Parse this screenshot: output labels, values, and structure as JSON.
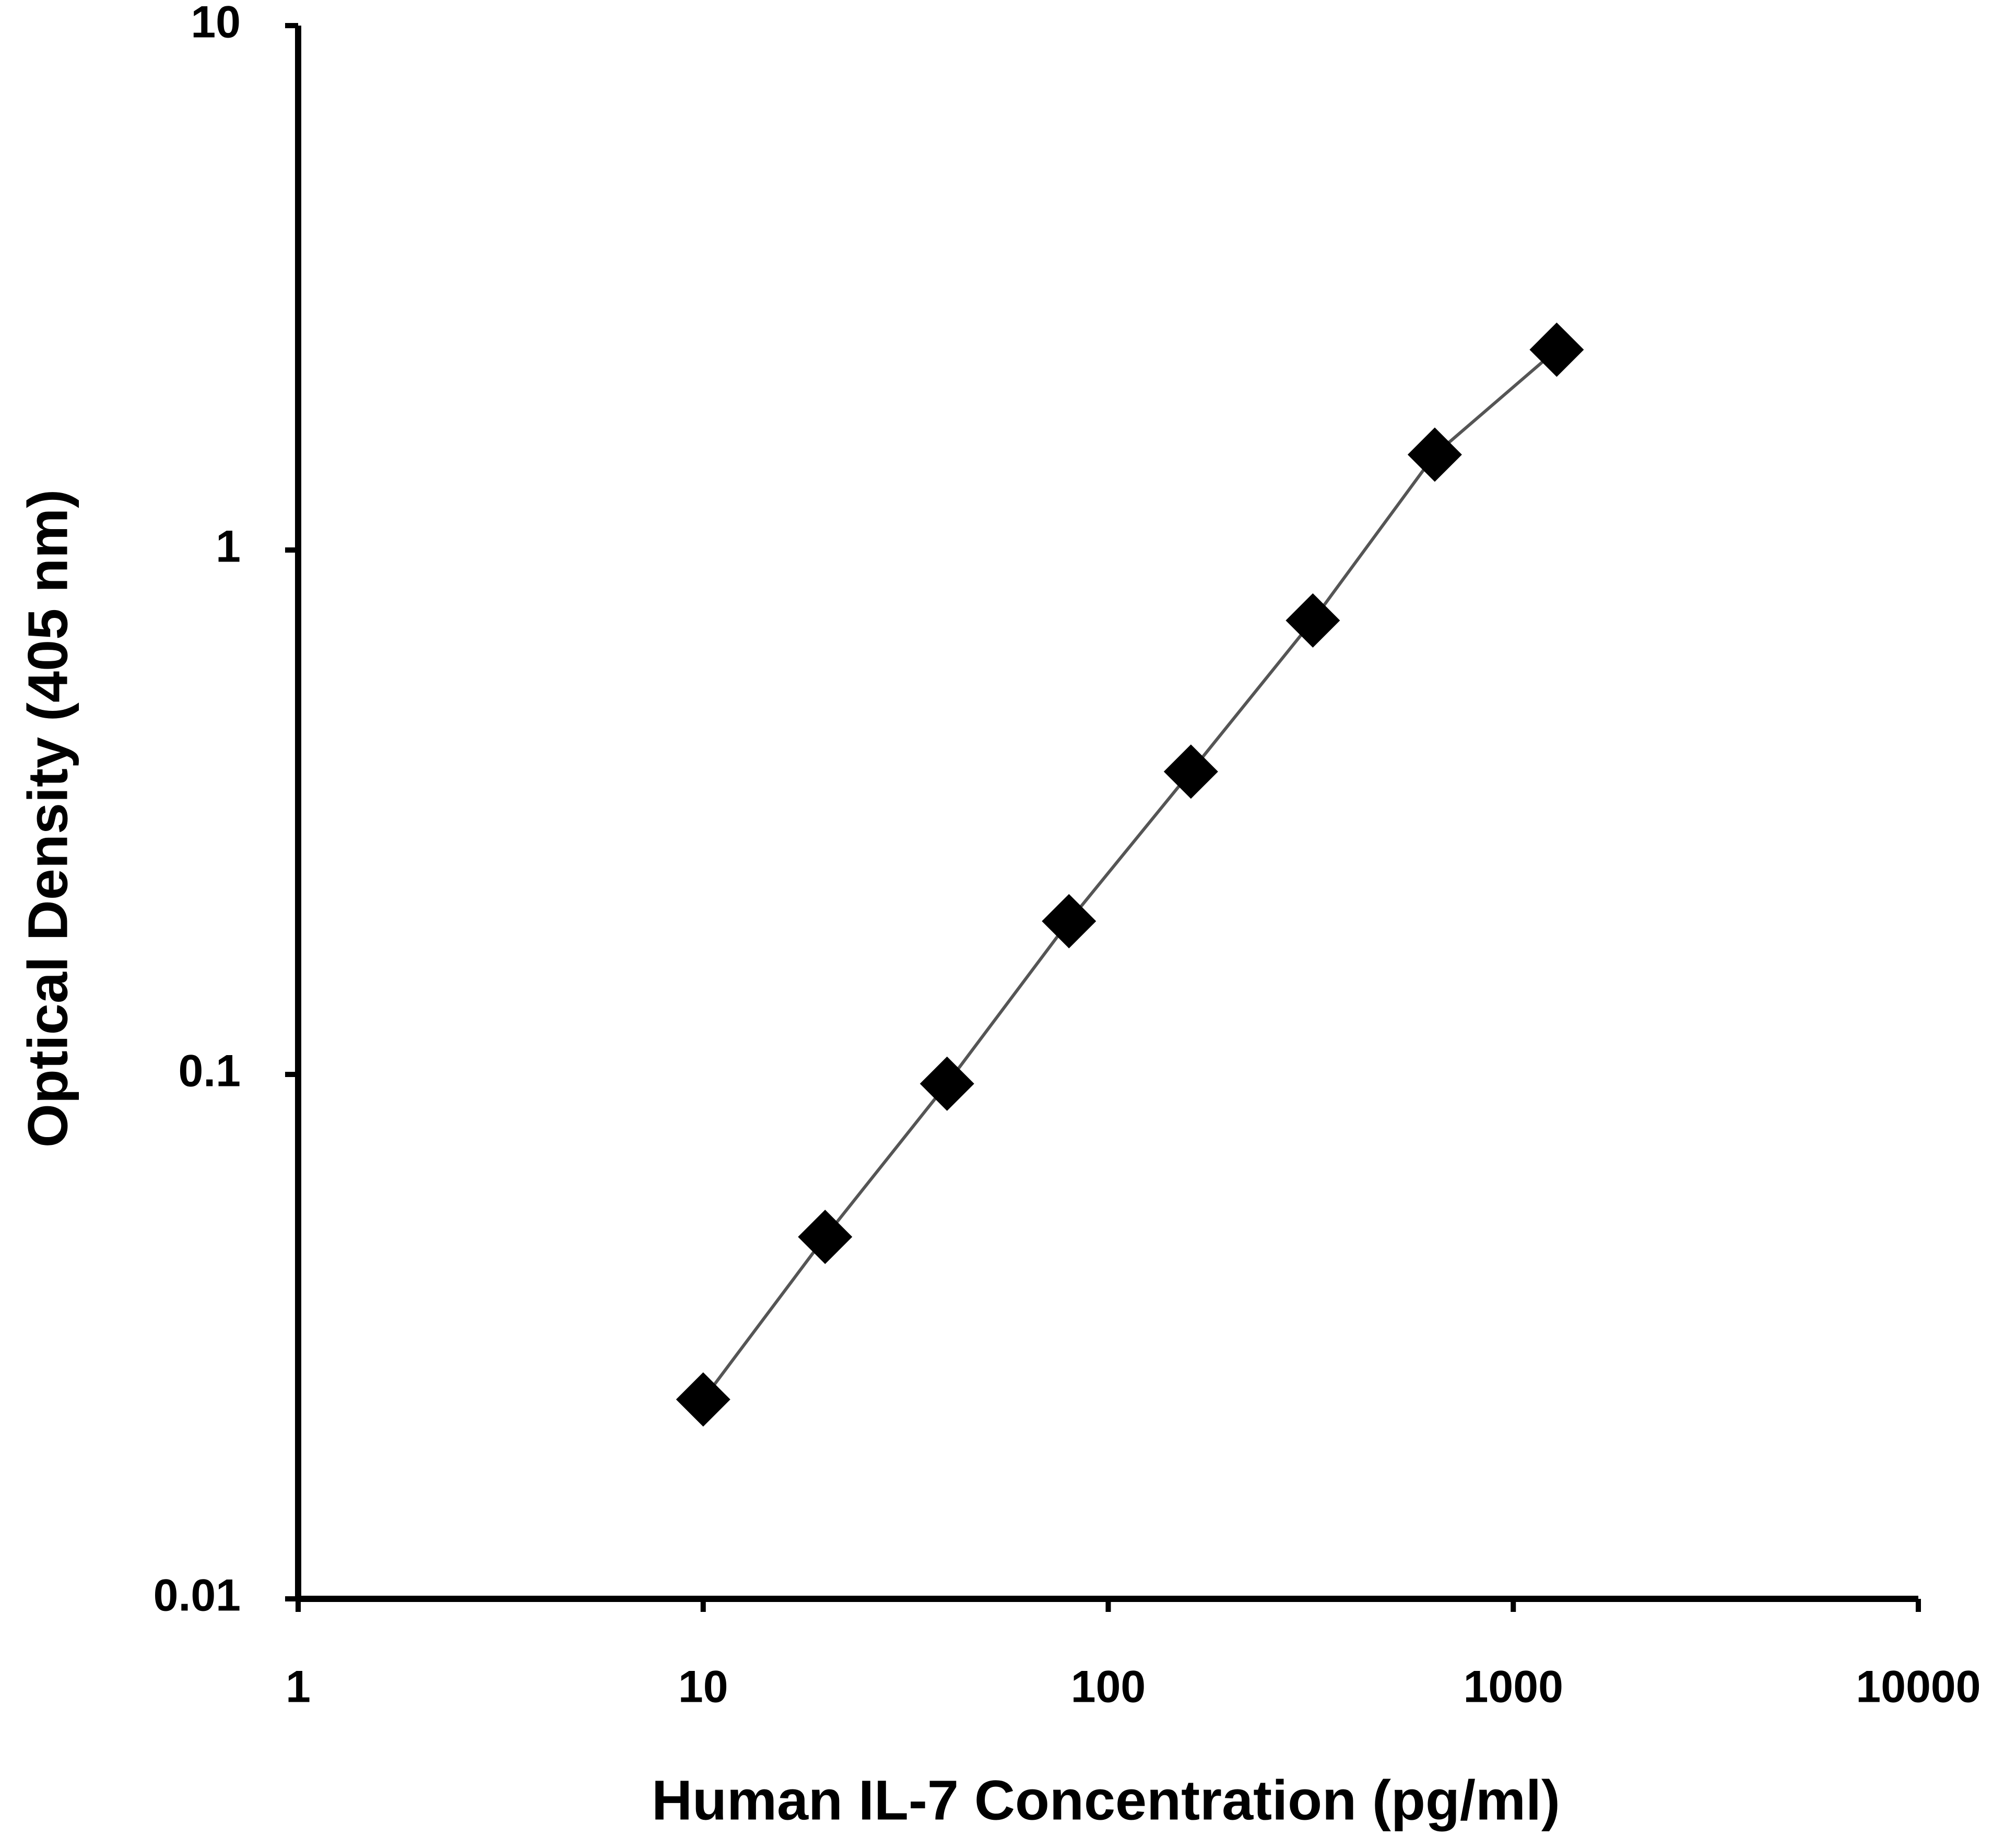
{
  "chart_data": {
    "type": "line",
    "x_label": "Human IL-7 Concentration (pg/ml)",
    "y_label": "Optical Density (405 nm)",
    "x": [
      10,
      20,
      40,
      80,
      160,
      320,
      640,
      1280
    ],
    "series": [
      {
        "color": "#000000",
        "values": [
          0.024,
          0.049,
          0.096,
          0.196,
          0.378,
          0.734,
          1.52,
          2.41
        ]
      }
    ],
    "xlim": [
      1,
      10000
    ],
    "xticks": [
      1,
      10,
      100,
      1000,
      10000
    ],
    "xscale": "log",
    "ylim": [
      0.01,
      10
    ],
    "yticks": [
      0.01,
      0.1,
      1,
      10
    ],
    "yscale": "log",
    "grid": false
  }
}
